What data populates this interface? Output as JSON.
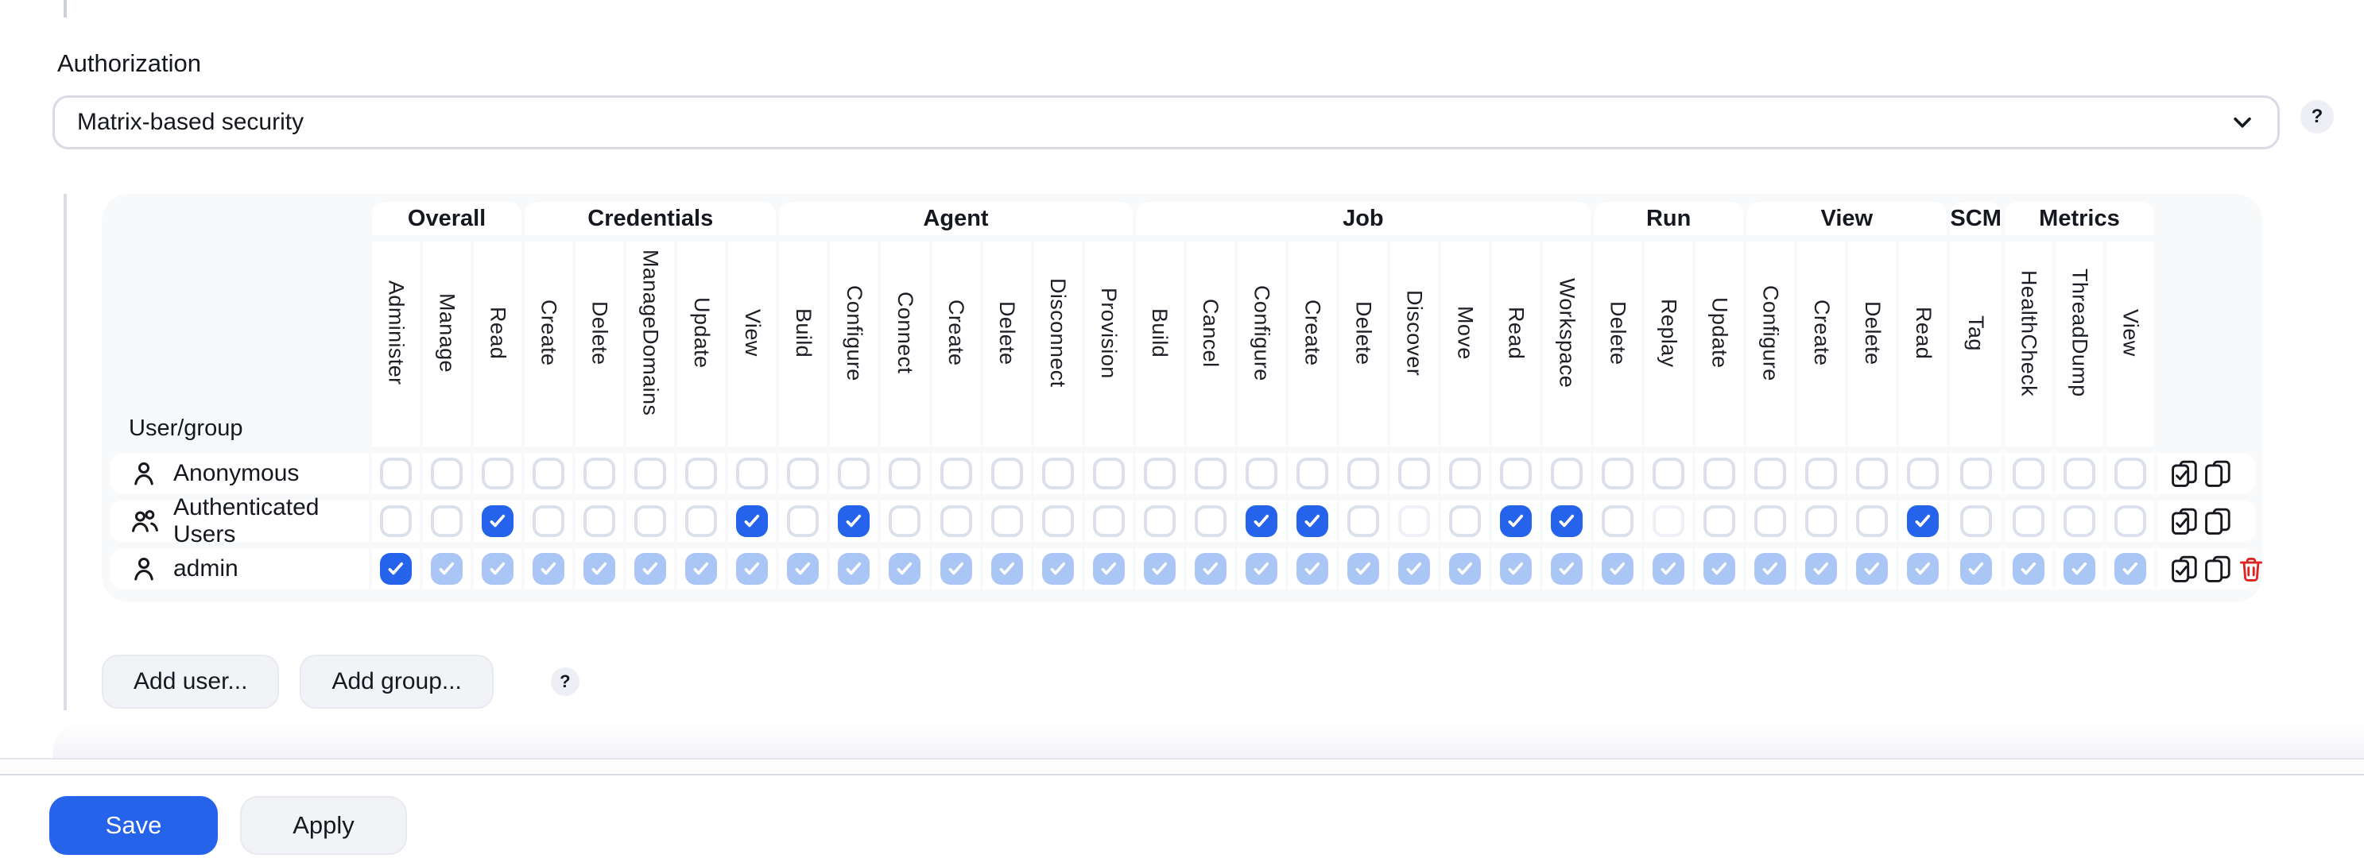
{
  "authorization": {
    "label": "Authorization",
    "selected_strategy": "Matrix-based security",
    "help_label": "?"
  },
  "matrix": {
    "user_group_header": "User/group",
    "groups": [
      {
        "label": "Overall",
        "permissions": [
          "Administer",
          "Manage",
          "Read"
        ]
      },
      {
        "label": "Credentials",
        "permissions": [
          "Create",
          "Delete",
          "ManageDomains",
          "Update",
          "View"
        ]
      },
      {
        "label": "Agent",
        "permissions": [
          "Build",
          "Configure",
          "Connect",
          "Create",
          "Delete",
          "Disconnect",
          "Provision"
        ]
      },
      {
        "label": "Job",
        "permissions": [
          "Build",
          "Cancel",
          "Configure",
          "Create",
          "Delete",
          "Discover",
          "Move",
          "Read",
          "Workspace"
        ]
      },
      {
        "label": "Run",
        "permissions": [
          "Delete",
          "Replay",
          "Update"
        ]
      },
      {
        "label": "View",
        "permissions": [
          "Configure",
          "Create",
          "Delete",
          "Read"
        ]
      },
      {
        "label": "SCM",
        "permissions": [
          "Tag"
        ]
      },
      {
        "label": "Metrics",
        "permissions": [
          "HealthCheck",
          "ThreadDump",
          "View"
        ]
      }
    ],
    "state_legend": {
      "c": "checked",
      "i": "checked-implied",
      "u": "unchecked",
      "f": "unchecked-faint"
    },
    "rows": [
      {
        "name": "Anonymous",
        "icon": "user",
        "states": "uuuuuuuuuuuuuuuuuuuuuuuuuuuuuuuuuuu",
        "actions": [
          "select-all",
          "copy-row"
        ]
      },
      {
        "name": "Authenticated Users",
        "icon": "users",
        "states": "uucuuuucucuuuuuuuccufuccufuuuucuuuu",
        "actions": [
          "select-all",
          "copy-row"
        ]
      },
      {
        "name": "admin",
        "icon": "user",
        "states": "ciiiiiiiiiiiiiiiiiiiiiiiiiiiiiiiiii",
        "actions": [
          "select-all",
          "copy-row",
          "delete-row"
        ]
      }
    ]
  },
  "buttons": {
    "add_user": "Add user...",
    "add_group": "Add group...",
    "matrix_help": "?",
    "save": "Save",
    "apply": "Apply"
  },
  "colors": {
    "accent": "#2563eb",
    "implied": "#a9c6f4",
    "danger": "#dc2626"
  }
}
